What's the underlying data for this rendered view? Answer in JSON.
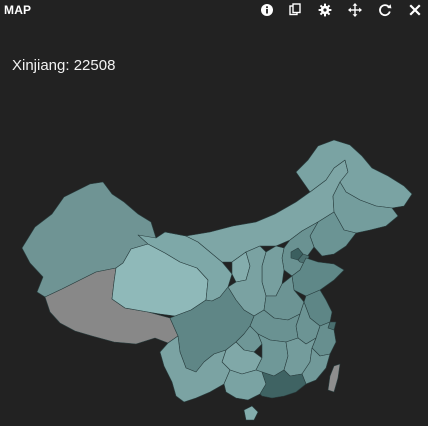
{
  "panel": {
    "title": "MAP"
  },
  "toolbar": {
    "items": [
      {
        "name": "info-icon",
        "label": "info"
      },
      {
        "name": "copy-icon",
        "label": "copy"
      },
      {
        "name": "gear-icon",
        "label": "settings"
      },
      {
        "name": "move-icon",
        "label": "move"
      },
      {
        "name": "refresh-icon",
        "label": "refresh"
      },
      {
        "name": "close-icon",
        "label": "close"
      }
    ]
  },
  "tooltip": {
    "text": "Xinjiang: 22508"
  },
  "map": {
    "colors": {
      "xinjiang": "#6f9494",
      "tibet": "#888888",
      "qinghai": "#8fb9b9",
      "gansu": "#7ea8a8",
      "inner_mongolia": "#7ea6a6",
      "heilongjiang": "#7aa3a3",
      "jilin": "#749d9d",
      "liaoning": "#6b9494",
      "beijing": "#3b5f5f",
      "tianjin": "#4c7070",
      "hebei": "#6a9292",
      "shandong": "#5f8888",
      "shanxi": "#779f9f",
      "shaanxi": "#7aa2a2",
      "ningxia": "#84adad",
      "henan": "#6c9494",
      "jiangsu": "#5e8686",
      "anhui": "#6c9494",
      "shanghai": "#4a6f6f",
      "zhejiang": "#678f8f",
      "hubei": "#6a9292",
      "sichuan": "#5f8686",
      "chongqing": "#6f9797",
      "guizhou": "#80a8a8",
      "yunnan": "#7ba3a3",
      "hunan": "#6f9898",
      "jiangxi": "#749c9c",
      "fujian": "#719999",
      "guangdong": "#3f6363",
      "guangxi": "#7aa3a3",
      "hainan": "#84adad",
      "taiwan": "#8e8e8e"
    }
  }
}
